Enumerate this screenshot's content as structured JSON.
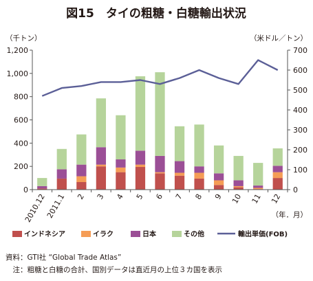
{
  "chart_data": {
    "type": "bar",
    "title": "図15　タイの粗糖・白糖輸出状況",
    "stacked": true,
    "categories": [
      "2010.12",
      "2011.1",
      "2",
      "3",
      "4",
      "5",
      "6",
      "7",
      "8",
      "9",
      "10",
      "11",
      "12"
    ],
    "xunit": "（年．月）",
    "y_left": {
      "unit": "（千トン）",
      "range": [
        0,
        1200
      ],
      "ticks": [
        "0",
        "200",
        "400",
        "600",
        "800",
        "1,000",
        "1,200"
      ]
    },
    "y_right": {
      "unit": "（米ドル／トン）",
      "range": [
        0,
        700
      ],
      "ticks": [
        "0",
        "100",
        "200",
        "300",
        "400",
        "500",
        "600",
        "700"
      ]
    },
    "series": [
      {
        "name": "インドネシア",
        "color": "#c0504d",
        "values": [
          10,
          95,
          65,
          200,
          150,
          195,
          140,
          120,
          95,
          40,
          20,
          5,
          100
        ]
      },
      {
        "name": "イラク",
        "color": "#f59d56",
        "values": [
          0,
          0,
          50,
          15,
          40,
          20,
          10,
          25,
          50,
          40,
          10,
          10,
          50
        ]
      },
      {
        "name": "日本",
        "color": "#9b4f96",
        "values": [
          20,
          80,
          100,
          150,
          70,
          120,
          140,
          100,
          55,
          60,
          50,
          20,
          55
        ]
      },
      {
        "name": "その他",
        "color": "#b6d49b",
        "values": [
          70,
          175,
          260,
          420,
          380,
          640,
          720,
          300,
          360,
          240,
          210,
          195,
          150
        ]
      }
    ],
    "line": {
      "name": "輸出単価(FOB)",
      "color": "#5b5f97",
      "axis": "right",
      "values": [
        470,
        510,
        520,
        540,
        540,
        550,
        530,
        560,
        600,
        560,
        530,
        650,
        600
      ]
    },
    "legend_position": "bottom",
    "grid": false
  },
  "notes": {
    "source": "資料：GTI社 “Global Trade Atlas”",
    "note": "　注：粗糖と白糖の合計、国別データは直近月の上位３カ国を表示"
  }
}
